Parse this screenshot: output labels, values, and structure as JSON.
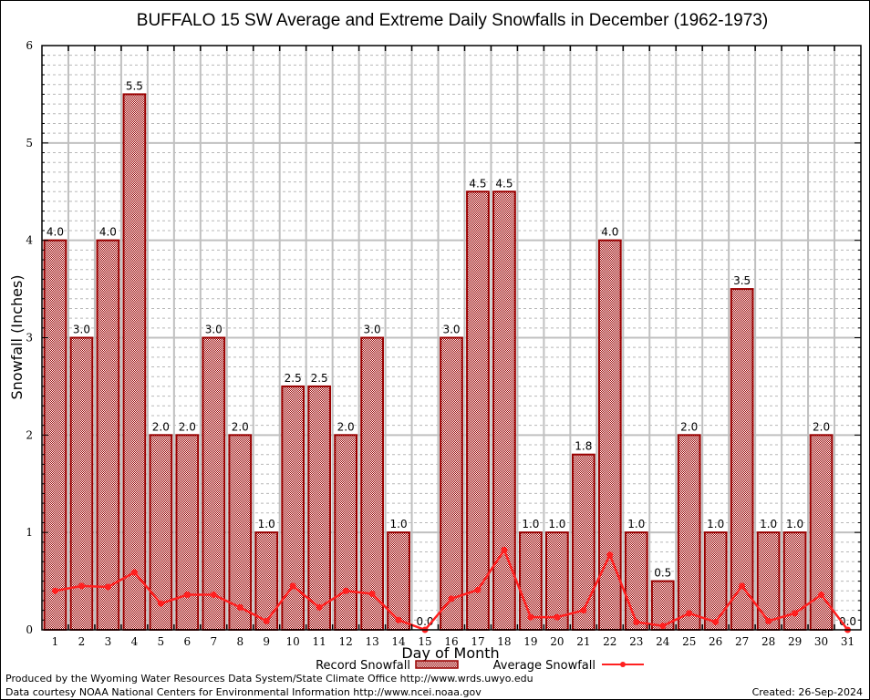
{
  "chart_data": {
    "type": "bar",
    "title": "BUFFALO 15 SW Average and Extreme Daily Snowfalls in December (1962-1973)",
    "xlabel": "Day of Month",
    "ylabel": "Snowfall (Inches)",
    "ylim": [
      0,
      6
    ],
    "yticks": [
      "0",
      "1",
      "2",
      "3",
      "4",
      "5",
      "6"
    ],
    "y_minor_step": 0.1,
    "grid": true,
    "categories": [
      "1",
      "2",
      "3",
      "4",
      "5",
      "6",
      "7",
      "8",
      "9",
      "10",
      "11",
      "12",
      "13",
      "14",
      "15",
      "16",
      "17",
      "18",
      "19",
      "20",
      "21",
      "22",
      "23",
      "24",
      "25",
      "26",
      "27",
      "28",
      "29",
      "30",
      "31"
    ],
    "series": [
      {
        "name": "Record Snowfall",
        "type": "bar",
        "color": "#990000",
        "values": [
          4.0,
          3.0,
          4.0,
          5.5,
          2.0,
          2.0,
          3.0,
          2.0,
          1.0,
          2.5,
          2.5,
          2.0,
          3.0,
          1.0,
          0.0,
          3.0,
          4.5,
          4.5,
          1.0,
          1.0,
          1.8,
          4.0,
          1.0,
          0.5,
          2.0,
          1.0,
          3.5,
          1.0,
          1.0,
          2.0,
          0.0
        ],
        "labels": [
          "4.0",
          "3.0",
          "4.0",
          "5.5",
          "2.0",
          "2.0",
          "3.0",
          "2.0",
          "1.0",
          "2.5",
          "2.5",
          "2.0",
          "3.0",
          "1.0",
          "0.0",
          "3.0",
          "4.5",
          "4.5",
          "1.0",
          "1.0",
          "1.8",
          "4.0",
          "1.0",
          "0.5",
          "2.0",
          "1.0",
          "3.5",
          "1.0",
          "1.0",
          "2.0",
          "0.0"
        ]
      },
      {
        "name": "Average Snowfall",
        "type": "line",
        "color": "#ff2020",
        "values": [
          0.4,
          0.45,
          0.44,
          0.59,
          0.27,
          0.36,
          0.36,
          0.23,
          0.09,
          0.45,
          0.23,
          0.4,
          0.37,
          0.1,
          0.0,
          0.32,
          0.41,
          0.82,
          0.13,
          0.13,
          0.2,
          0.77,
          0.08,
          0.04,
          0.17,
          0.08,
          0.45,
          0.09,
          0.17,
          0.36,
          0.0
        ]
      }
    ],
    "legend": {
      "position": "bottom-center",
      "entries": [
        "Record Snowfall",
        "Average Snowfall"
      ]
    }
  },
  "footer": {
    "produced_by": "Produced by the Wyoming Water Resources Data System/State Climate Office http://www.wrds.uwyo.edu",
    "data_courtesy": "Data courtesy NOAA National Centers for Environmental Information http://www.ncei.noaa.gov",
    "created": "Created: 26-Sep-2024"
  }
}
